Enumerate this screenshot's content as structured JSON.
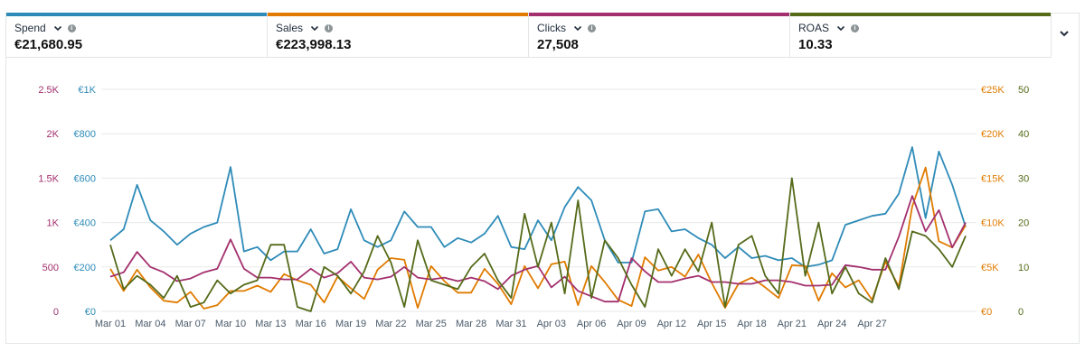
{
  "metrics": [
    {
      "label": "Spend",
      "value": "€21,680.95",
      "color": "#2e8bb8"
    },
    {
      "label": "Sales",
      "value": "€223,998.13",
      "color": "#e07b00"
    },
    {
      "label": "Clicks",
      "value": "27,508",
      "color": "#a3306e"
    },
    {
      "label": "ROAS",
      "value": "10.33",
      "color": "#556b1a"
    }
  ],
  "icons": {
    "dropdown": "chevron-down-icon",
    "info": "info-icon",
    "expand": "chevron-down-icon"
  },
  "info_glyph": "i",
  "chart_data": {
    "type": "line",
    "x_tick_labels": [
      "Mar 01",
      "Mar 04",
      "Mar 07",
      "Mar 10",
      "Mar 13",
      "Mar 16",
      "Mar 19",
      "Mar 22",
      "Mar 25",
      "Mar 28",
      "Mar 31",
      "Apr 03",
      "Apr 06",
      "Apr 09",
      "Apr 12",
      "Apr 15",
      "Apr 18",
      "Apr 21",
      "Apr 24",
      "Apr 27"
    ],
    "x_start": "Mar 01",
    "axes": {
      "clicks": {
        "ticks": [
          "0",
          "500",
          "1K",
          "1.5K",
          "2K",
          "2.5K"
        ],
        "ylim": [
          0,
          2500
        ],
        "color": "#a3306e"
      },
      "spend": {
        "ticks": [
          "€0",
          "€200",
          "€400",
          "€600",
          "€800",
          "€1K"
        ],
        "ylim": [
          0,
          1000
        ],
        "color": "#2e8bb8"
      },
      "sales": {
        "ticks": [
          "€0",
          "€5K",
          "€10K",
          "€15K",
          "€20K",
          "€25K"
        ],
        "ylim": [
          0,
          25000
        ],
        "color": "#e07b00"
      },
      "roas": {
        "ticks": [
          "0",
          "10",
          "20",
          "30",
          "40",
          "50"
        ],
        "ylim": [
          0,
          50
        ],
        "color": "#556b1a"
      }
    },
    "grid": true,
    "series": [
      {
        "name": "Spend",
        "axis": "spend",
        "color": "#2e8bb8",
        "values": [
          320,
          370,
          570,
          410,
          360,
          300,
          350,
          380,
          400,
          650,
          270,
          290,
          230,
          270,
          270,
          370,
          260,
          280,
          460,
          320,
          290,
          320,
          450,
          380,
          380,
          290,
          330,
          310,
          350,
          430,
          290,
          280,
          410,
          320,
          470,
          560,
          500,
          320,
          220,
          220,
          450,
          460,
          360,
          370,
          330,
          300,
          240,
          290,
          240,
          250,
          230,
          240,
          200,
          210,
          230,
          390,
          410,
          430,
          440,
          530,
          740,
          420,
          720,
          570,
          380
        ],
        "note": "values approximate"
      },
      {
        "name": "Sales",
        "axis": "sales",
        "color": "#e07b00",
        "values": [
          4800,
          2300,
          4700,
          2700,
          1200,
          1000,
          2200,
          300,
          700,
          2300,
          2300,
          2900,
          2200,
          4200,
          3500,
          3000,
          1000,
          3900,
          2600,
          1400,
          4700,
          6000,
          5800,
          400,
          5100,
          3400,
          2100,
          2100,
          4800,
          3100,
          800,
          5100,
          2600,
          5300,
          5600,
          700,
          5100,
          3300,
          1300,
          600,
          6100,
          4600,
          5000,
          3900,
          6400,
          3200,
          400,
          3100,
          3800,
          2700,
          1500,
          5200,
          5100,
          1200,
          4300,
          2700,
          3500,
          1300,
          5600,
          2800,
          11800,
          16200,
          7900,
          7200,
          9700
        ],
        "note": "values approximate"
      },
      {
        "name": "Clicks",
        "axis": "clicks",
        "color": "#a3306e",
        "values": [
          390,
          440,
          670,
          500,
          440,
          340,
          370,
          440,
          480,
          810,
          480,
          380,
          380,
          360,
          360,
          480,
          380,
          430,
          560,
          380,
          360,
          390,
          500,
          380,
          360,
          380,
          340,
          380,
          340,
          250,
          400,
          470,
          510,
          270,
          390,
          230,
          170,
          110,
          110,
          600,
          450,
          330,
          330,
          370,
          400,
          330,
          330,
          310,
          310,
          350,
          350,
          330,
          290,
          290,
          300,
          520,
          500,
          470,
          470,
          840,
          1300,
          900,
          1140,
          720,
          1000
        ],
        "note": "values approximate"
      },
      {
        "name": "ROAS",
        "axis": "roas",
        "color": "#556b1a",
        "values": [
          15,
          5,
          8,
          6,
          3,
          8,
          1,
          2,
          7,
          4,
          6,
          7,
          15,
          15,
          1,
          0,
          10,
          8,
          4,
          9,
          17,
          11,
          1,
          16,
          7,
          6,
          5,
          10,
          13,
          7,
          3,
          22,
          10,
          20,
          4,
          25,
          3,
          16,
          12,
          6,
          1,
          14,
          8,
          14,
          9,
          20,
          1,
          15,
          17,
          8,
          4,
          30,
          8,
          20,
          4,
          10,
          4,
          2,
          12,
          5,
          18,
          17,
          14,
          10,
          17
        ],
        "note": "values approximate"
      }
    ]
  }
}
